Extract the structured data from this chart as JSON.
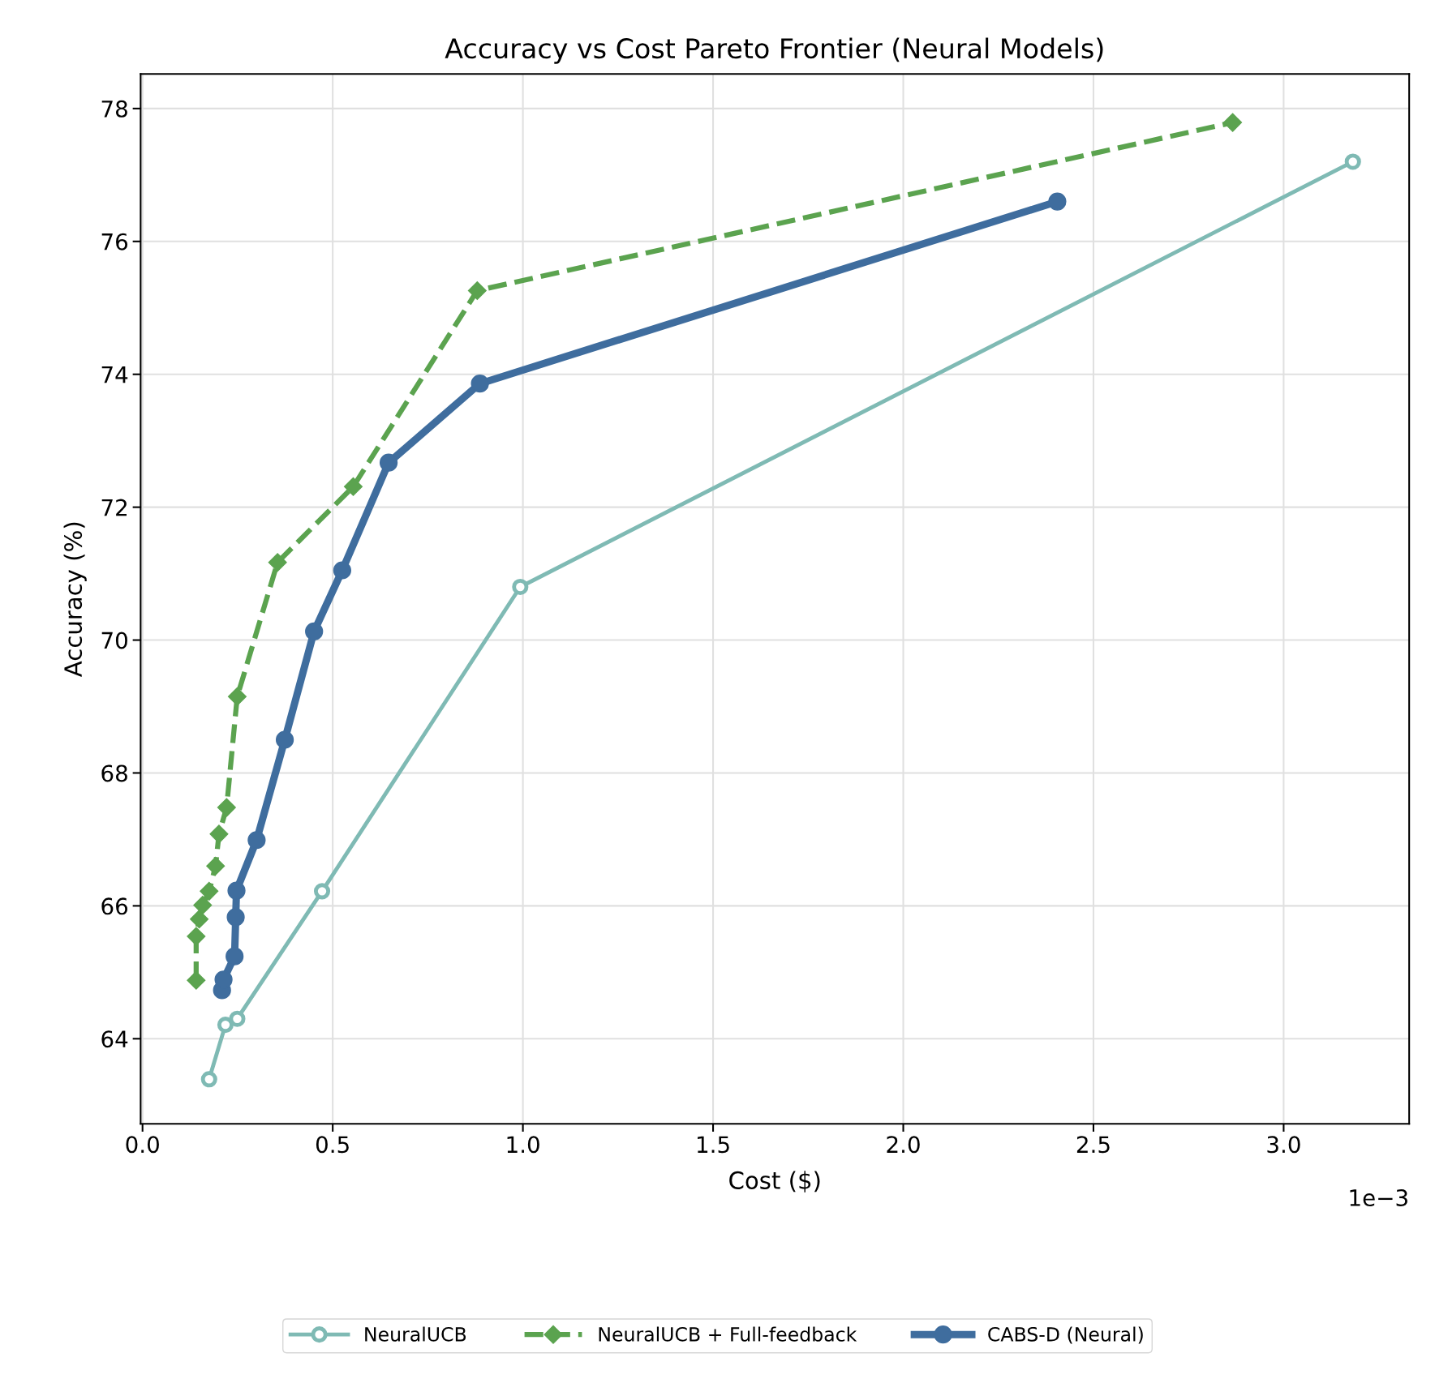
{
  "chart_data": {
    "type": "line",
    "title": "Accuracy vs Cost Pareto Frontier (Neural Models)",
    "xlabel": "Cost ($)",
    "ylabel": "Accuracy (%)",
    "annotations": [
      "1e−3"
    ],
    "xlim": [
      -0.005,
      3.33
    ],
    "ylim": [
      62.72,
      78.52
    ],
    "xticks": [
      {
        "value": 0,
        "label": "0.0"
      },
      0.5,
      {
        "value": 1,
        "label": "1.0"
      },
      1.5,
      {
        "value": 2,
        "label": "2.0"
      },
      2.5,
      {
        "value": 3,
        "label": "3.0"
      }
    ],
    "yticks": [
      64,
      66,
      68,
      70,
      72,
      74,
      76,
      78
    ],
    "grid": true,
    "legend": "bottom",
    "series": [
      {
        "name": "NeuralUCB",
        "color": "#7fbab4",
        "marker": "circle",
        "line_style": "solid",
        "x": [
          0.175,
          0.218,
          0.249,
          0.472,
          0.993,
          3.182
        ],
        "values": [
          63.39,
          64.21,
          64.3,
          66.22,
          70.8,
          77.2
        ]
      },
      {
        "name": "NeuralUCB + Full-feedback",
        "color": "#5ba34f",
        "marker": "diamond",
        "line_style": "dashed",
        "x": [
          0.141,
          0.141,
          0.149,
          0.158,
          0.175,
          0.192,
          0.201,
          0.221,
          0.249,
          0.355,
          0.554,
          0.88,
          2.866
        ],
        "values": [
          64.88,
          65.54,
          65.8,
          66.01,
          66.22,
          66.6,
          67.08,
          67.48,
          69.15,
          71.17,
          72.31,
          75.26,
          77.79
        ]
      },
      {
        "name": "CABS-D (Neural)",
        "color": "#3f6d9e",
        "marker": "circle",
        "line_style": "solid",
        "x": [
          0.209,
          0.213,
          0.242,
          0.245,
          0.247,
          0.3,
          0.374,
          0.451,
          0.525,
          0.647,
          0.887,
          2.405
        ],
        "values": [
          64.73,
          64.89,
          65.24,
          65.83,
          66.23,
          66.99,
          68.5,
          70.13,
          71.05,
          72.67,
          73.86,
          76.6
        ]
      }
    ]
  }
}
